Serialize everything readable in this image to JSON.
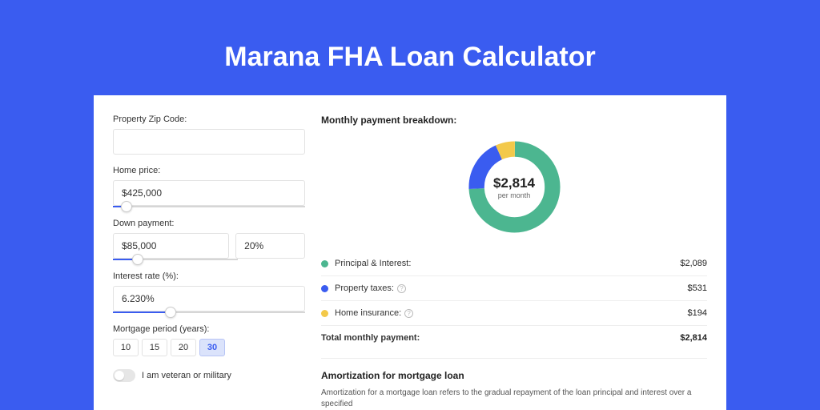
{
  "page_title": "Marana FHA Loan Calculator",
  "colors": {
    "page_bg": "#3a5cf0",
    "card_bg": "#ffffff",
    "accent": "#3a5cf0",
    "text": "#333333",
    "muted": "#666666",
    "border": "#e2e2e2"
  },
  "form": {
    "zip": {
      "label": "Property Zip Code:",
      "value": ""
    },
    "home_price": {
      "label": "Home price:",
      "value": "$425,000",
      "slider_fill_pct": 7
    },
    "down_payment": {
      "label": "Down payment:",
      "amount": "$85,000",
      "pct": "20%",
      "slider_fill_pct": 20
    },
    "interest_rate": {
      "label": "Interest rate (%):",
      "value": "6.230%",
      "slider_fill_pct": 30
    },
    "mortgage_period": {
      "label": "Mortgage period (years):",
      "options": [
        "10",
        "15",
        "20",
        "30"
      ],
      "selected": "30"
    },
    "veteran": {
      "label": "I am veteran or military",
      "checked": false
    }
  },
  "breakdown": {
    "title": "Monthly payment breakdown:",
    "donut": {
      "center_amount": "$2,814",
      "center_sub": "per month",
      "slices": [
        {
          "label": "Principal & Interest:",
          "value": "$2,089",
          "color": "#4cb690",
          "pct": 74.2
        },
        {
          "label": "Property taxes:",
          "value": "$531",
          "color": "#3a5cf0",
          "pct": 18.9,
          "help": true
        },
        {
          "label": "Home insurance:",
          "value": "$194",
          "color": "#f3c94a",
          "pct": 6.9,
          "help": true
        }
      ]
    },
    "total": {
      "label": "Total monthly payment:",
      "value": "$2,814"
    }
  },
  "amortization": {
    "title": "Amortization for mortgage loan",
    "text": "Amortization for a mortgage loan refers to the gradual repayment of the loan principal and interest over a specified"
  }
}
